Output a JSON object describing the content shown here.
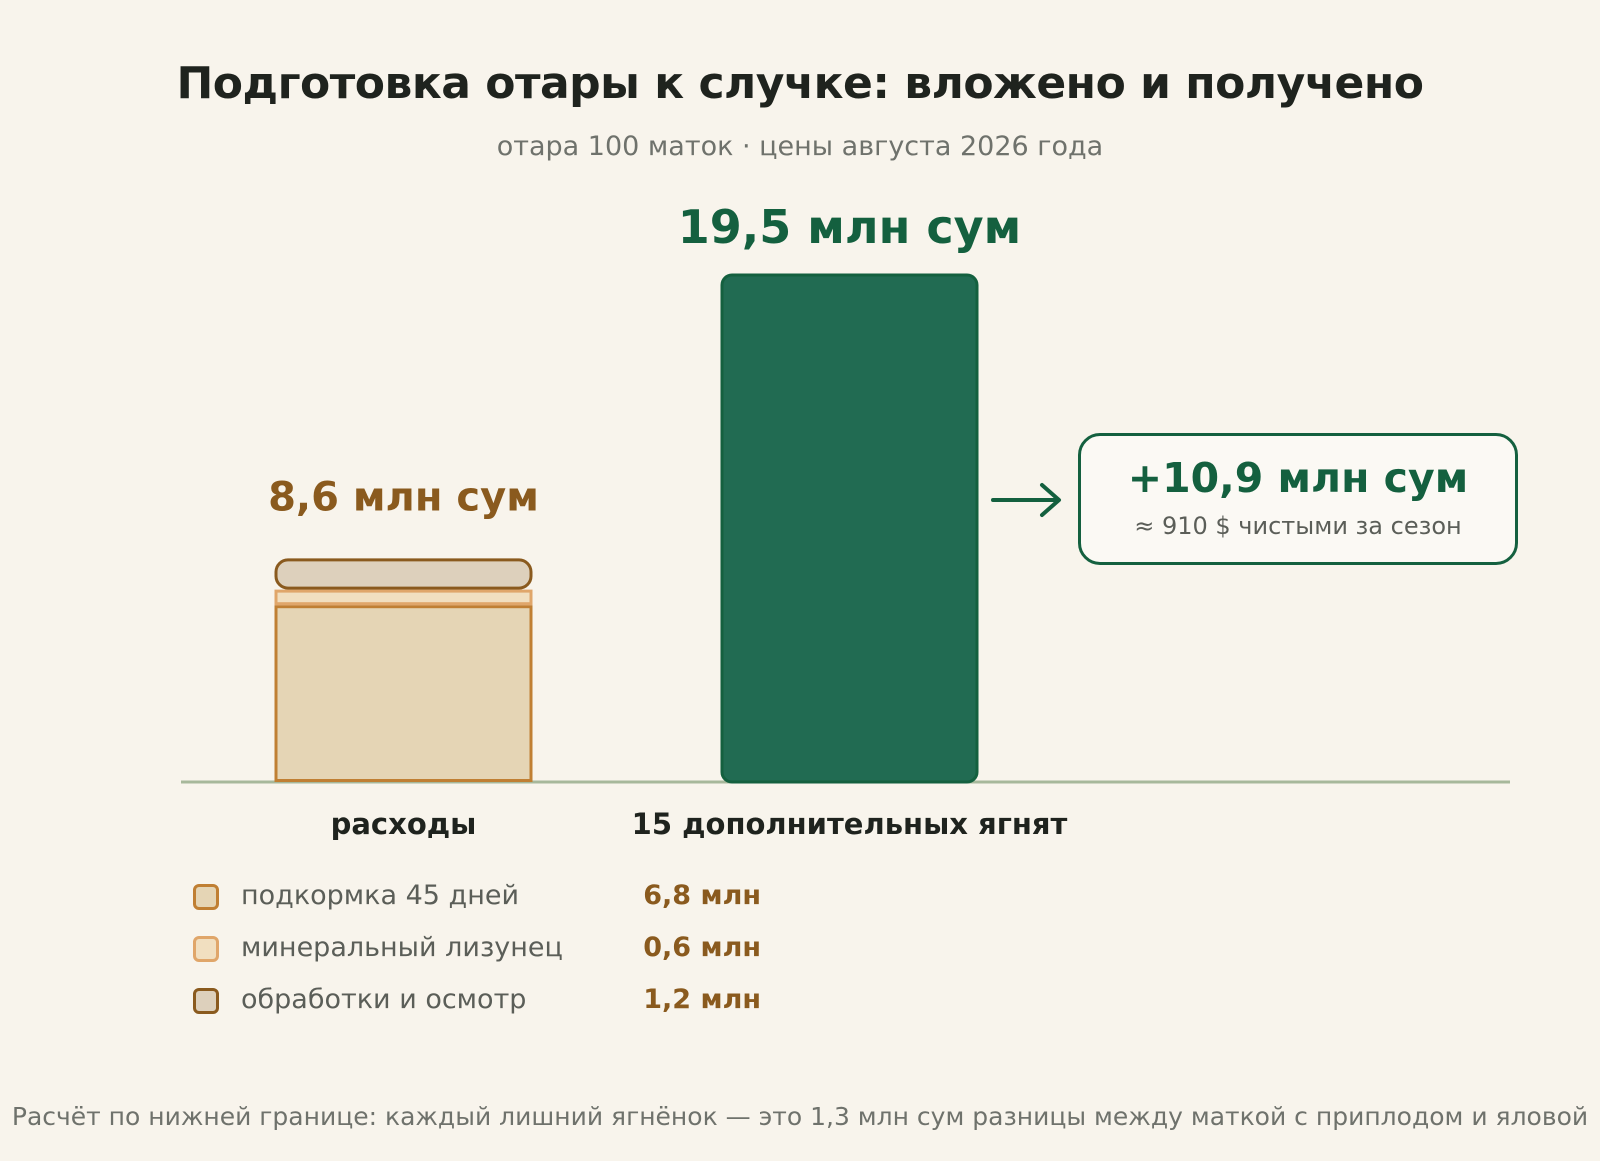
{
  "title": "Подготовка отары к случке: вложено и получено",
  "subtitle": "отара 100 маток · цены августа 2026 года",
  "chart_data": {
    "type": "bar",
    "categories": [
      "расходы",
      "15 дополнительных ягнят"
    ],
    "unit": "млн сум",
    "values": [
      8.6,
      19.5
    ],
    "value_labels": [
      "8,6 млн сум",
      "19,5 млн сум"
    ],
    "expense_components": [
      {
        "name": "подкормка 45 дней",
        "value": 6.8,
        "label": "6,8 млн",
        "fill": "#e5d5b5",
        "stroke": "#c07f33"
      },
      {
        "name": "минеральный лизунец",
        "value": 0.6,
        "label": "0,6 млн",
        "fill": "#f1dfc0",
        "stroke": "#e0a66a"
      },
      {
        "name": "обработки и осмотр",
        "value": 1.2,
        "label": "1,2 млн",
        "fill": "#ddd0bc",
        "stroke": "#8a5a1e"
      }
    ],
    "income_color": "#216b52",
    "income_stroke": "#14603f",
    "baseline_color": "#a7b89b",
    "expense_label_color": "#8a5a1e",
    "income_label_color": "#14603f"
  },
  "callout": {
    "value": "+10,9 млн сум",
    "note": "≈ 910 $ чистыми за сезон"
  },
  "footnote": "Расчёт по нижней границе: каждый лишний ягнёнок — это 1,3 млн сум разницы между маткой с приплодом и яловой"
}
